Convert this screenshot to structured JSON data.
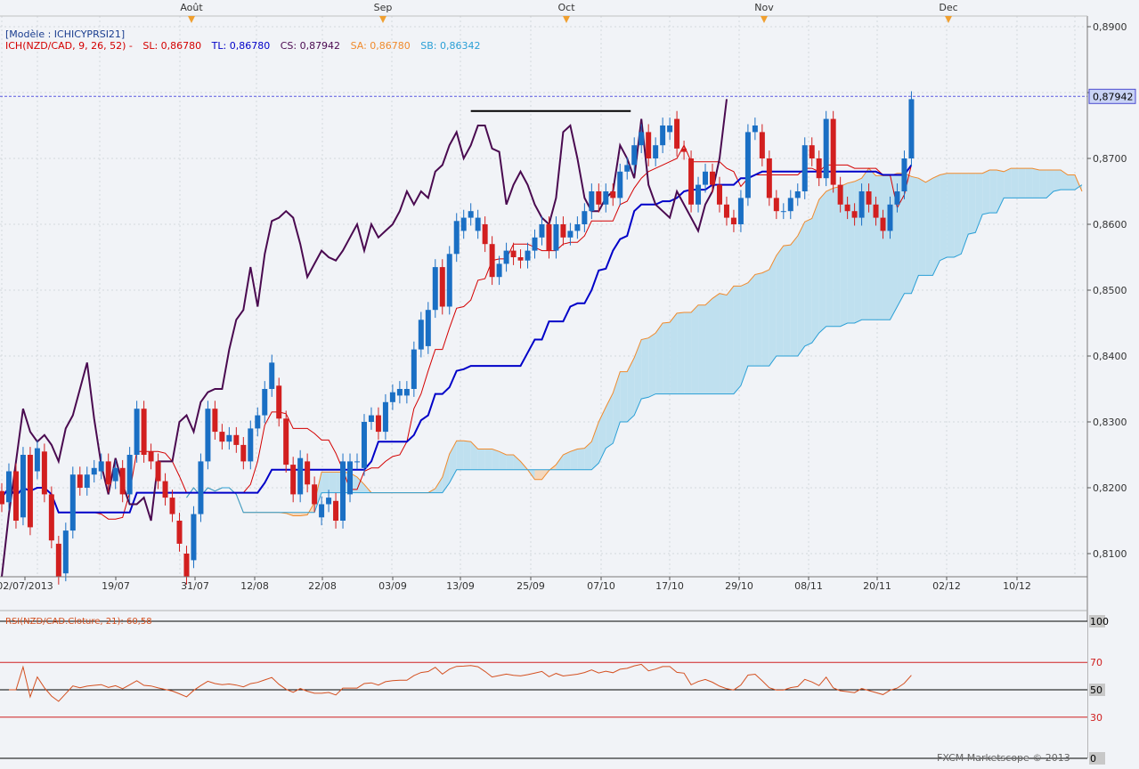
{
  "header": {
    "model_label": "[Modèle : ICHICYPRSI21]",
    "ich_label": "ICH(NZD/CAD, 9, 26, 52) -",
    "sl_label": "SL: 0,86780",
    "tl_label": "TL: 0,86780",
    "cs_label": "CS: 0,87942",
    "sa_label": "SA: 0,86780",
    "sb_label": "SB: 0,86342"
  },
  "colors": {
    "background": "#f1f3f7",
    "grid": "#d4d8de",
    "up_candle": "#1a6fc4",
    "down_candle": "#d21f1f",
    "tenkan": "#d40000",
    "kijun": "#0000c8",
    "chikou": "#4a0a50",
    "senkou_a": "#f08a2c",
    "senkou_b": "#2a9fd6",
    "cloud_bull": "#f5d8bd",
    "cloud_bear": "#bfe0ef",
    "rsi_line": "#d45020",
    "price_tag": "#c9d3f5"
  },
  "footer": {
    "copyright": "FXCM Marketscope © 2013"
  },
  "chart_data": [
    {
      "type": "candlestick",
      "symbol": "NZD/CAD",
      "indicator": "Ichimoku (9, 26, 52)",
      "month_labels": [
        "Août",
        "Sep",
        "Oct",
        "Nov",
        "Dec"
      ],
      "x_tick_labels": [
        "02/07/2013",
        "19/07",
        "31/07",
        "12/08",
        "22/08",
        "03/09",
        "13/09",
        "25/09",
        "07/10",
        "17/10",
        "29/10",
        "08/11",
        "20/11",
        "02/12",
        "10/12"
      ],
      "y_tick_labels": [
        "0,8900",
        "0,8800",
        "0,8700",
        "0,8600",
        "0,8500",
        "0,8400",
        "0,8300",
        "0,8200",
        "0,8100"
      ],
      "y_ticks": [
        0.89,
        0.88,
        0.87,
        0.86,
        0.85,
        0.84,
        0.83,
        0.82,
        0.81
      ],
      "ylim": [
        0.8048,
        0.8952
      ],
      "last_price_label": "0,87942",
      "last_price": 0.87942,
      "resistance_level": 0.8772,
      "resistance_span_candles": [
        66,
        87
      ],
      "candles_open_close": [
        [
          0.8195,
          0.8175
        ],
        [
          0.8178,
          0.8225
        ],
        [
          0.8225,
          0.815
        ],
        [
          0.8155,
          0.825
        ],
        [
          0.825,
          0.814
        ],
        [
          0.8225,
          0.826
        ],
        [
          0.8255,
          0.819
        ],
        [
          0.819,
          0.812
        ],
        [
          0.8115,
          0.8065
        ],
        [
          0.807,
          0.8135
        ],
        [
          0.8135,
          0.822
        ],
        [
          0.822,
          0.82
        ],
        [
          0.82,
          0.822
        ],
        [
          0.822,
          0.823
        ],
        [
          0.8225,
          0.824
        ],
        [
          0.824,
          0.8205
        ],
        [
          0.821,
          0.823
        ],
        [
          0.823,
          0.819
        ],
        [
          0.819,
          0.825
        ],
        [
          0.825,
          0.832
        ],
        [
          0.832,
          0.825
        ],
        [
          0.8255,
          0.824
        ],
        [
          0.824,
          0.821
        ],
        [
          0.821,
          0.8185
        ],
        [
          0.8185,
          0.816
        ],
        [
          0.815,
          0.8115
        ],
        [
          0.81,
          0.8065
        ],
        [
          0.809,
          0.816
        ],
        [
          0.816,
          0.824
        ],
        [
          0.824,
          0.832
        ],
        [
          0.832,
          0.8285
        ],
        [
          0.8285,
          0.827
        ],
        [
          0.827,
          0.828
        ],
        [
          0.828,
          0.8265
        ],
        [
          0.8265,
          0.824
        ],
        [
          0.824,
          0.829
        ],
        [
          0.829,
          0.831
        ],
        [
          0.831,
          0.835
        ],
        [
          0.835,
          0.839
        ],
        [
          0.8355,
          0.8305
        ],
        [
          0.8305,
          0.8235
        ],
        [
          0.8235,
          0.819
        ],
        [
          0.819,
          0.8245
        ],
        [
          0.824,
          0.8205
        ],
        [
          0.8205,
          0.8175
        ],
        [
          0.8155,
          0.8175
        ],
        [
          0.8175,
          0.8185
        ],
        [
          0.818,
          0.815
        ],
        [
          0.815,
          0.824
        ],
        [
          0.819,
          0.824
        ],
        [
          0.824,
          0.824
        ],
        [
          0.823,
          0.83
        ],
        [
          0.83,
          0.831
        ],
        [
          0.831,
          0.8285
        ],
        [
          0.8285,
          0.833
        ],
        [
          0.833,
          0.8345
        ],
        [
          0.834,
          0.835
        ],
        [
          0.834,
          0.835
        ],
        [
          0.835,
          0.841
        ],
        [
          0.841,
          0.8455
        ],
        [
          0.8415,
          0.847
        ],
        [
          0.847,
          0.8535
        ],
        [
          0.8535,
          0.8475
        ],
        [
          0.8475,
          0.8555
        ],
        [
          0.8555,
          0.8605
        ],
        [
          0.859,
          0.861
        ],
        [
          0.861,
          0.862
        ],
        [
          0.859,
          0.861
        ],
        [
          0.86,
          0.857
        ],
        [
          0.857,
          0.852
        ],
        [
          0.852,
          0.854
        ],
        [
          0.854,
          0.856
        ],
        [
          0.856,
          0.855
        ],
        [
          0.855,
          0.8545
        ],
        [
          0.8545,
          0.856
        ],
        [
          0.856,
          0.858
        ],
        [
          0.858,
          0.86
        ],
        [
          0.86,
          0.856
        ],
        [
          0.856,
          0.86
        ],
        [
          0.86,
          0.858
        ],
        [
          0.858,
          0.859
        ],
        [
          0.859,
          0.86
        ],
        [
          0.86,
          0.862
        ],
        [
          0.862,
          0.865
        ],
        [
          0.865,
          0.863
        ],
        [
          0.863,
          0.865
        ],
        [
          0.865,
          0.864
        ],
        [
          0.864,
          0.868
        ],
        [
          0.868,
          0.869
        ],
        [
          0.869,
          0.872
        ],
        [
          0.872,
          0.874
        ],
        [
          0.874,
          0.87
        ],
        [
          0.87,
          0.872
        ],
        [
          0.872,
          0.875
        ],
        [
          0.874,
          0.875
        ],
        [
          0.876,
          0.8715
        ],
        [
          0.8715,
          0.871
        ],
        [
          0.87,
          0.863
        ],
        [
          0.863,
          0.866
        ],
        [
          0.866,
          0.868
        ],
        [
          0.868,
          0.866
        ],
        [
          0.866,
          0.863
        ],
        [
          0.863,
          0.861
        ],
        [
          0.861,
          0.86
        ],
        [
          0.86,
          0.864
        ],
        [
          0.864,
          0.874
        ],
        [
          0.874,
          0.875
        ],
        [
          0.874,
          0.87
        ],
        [
          0.87,
          0.864
        ],
        [
          0.864,
          0.862
        ],
        [
          0.862,
          0.862
        ],
        [
          0.862,
          0.864
        ],
        [
          0.864,
          0.865
        ],
        [
          0.865,
          0.872
        ],
        [
          0.872,
          0.87
        ],
        [
          0.87,
          0.867
        ],
        [
          0.867,
          0.876
        ],
        [
          0.876,
          0.866
        ],
        [
          0.866,
          0.863
        ],
        [
          0.863,
          0.862
        ],
        [
          0.862,
          0.861
        ],
        [
          0.861,
          0.865
        ],
        [
          0.865,
          0.863
        ],
        [
          0.863,
          0.861
        ],
        [
          0.861,
          0.859
        ],
        [
          0.859,
          0.863
        ],
        [
          0.863,
          0.865
        ],
        [
          0.865,
          0.87
        ],
        [
          0.87,
          0.879
        ]
      ]
    },
    {
      "type": "line",
      "indicator": "RSI",
      "label": "RSI(NZD/CAD.Cloture, 21): 60,58",
      "ylim": [
        0,
        100
      ],
      "y_tick_labels": [
        "100",
        "70",
        "50",
        "30",
        "0"
      ],
      "y_ticks": [
        100,
        70,
        50,
        30,
        0
      ],
      "current_value": 60.58
    }
  ]
}
